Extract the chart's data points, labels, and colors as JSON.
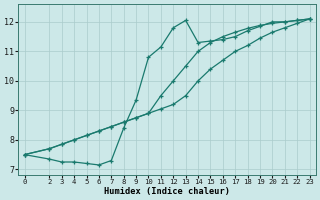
{
  "xlabel": "Humidex (Indice chaleur)",
  "bg_color": "#cce8e8",
  "grid_color": "#aacccc",
  "line_color": "#1a7a6e",
  "xlim": [
    -0.5,
    23.5
  ],
  "ylim": [
    6.8,
    12.6
  ],
  "xticks": [
    0,
    2,
    3,
    4,
    5,
    6,
    7,
    8,
    9,
    10,
    11,
    12,
    13,
    14,
    15,
    16,
    17,
    18,
    19,
    20,
    21,
    22,
    23
  ],
  "yticks": [
    7,
    8,
    9,
    10,
    11,
    12
  ],
  "line1_diag": {
    "x": [
      0,
      2,
      3,
      4,
      5,
      6,
      7,
      8,
      9,
      10,
      11,
      12,
      13,
      14,
      15,
      16,
      17,
      18,
      19,
      20,
      21,
      22,
      23
    ],
    "y": [
      7.5,
      7.7,
      7.85,
      8.0,
      8.15,
      8.3,
      8.45,
      8.6,
      8.75,
      8.9,
      9.05,
      9.2,
      9.5,
      10.0,
      10.4,
      10.7,
      11.0,
      11.2,
      11.45,
      11.65,
      11.8,
      11.95,
      12.1
    ]
  },
  "line2_diag2": {
    "x": [
      0,
      2,
      3,
      4,
      5,
      6,
      7,
      8,
      9,
      10,
      11,
      12,
      13,
      14,
      15,
      16,
      17,
      18,
      19,
      20,
      21,
      22,
      23
    ],
    "y": [
      7.5,
      7.7,
      7.85,
      8.0,
      8.15,
      8.3,
      8.45,
      8.6,
      8.75,
      8.9,
      9.5,
      10.0,
      10.5,
      11.0,
      11.3,
      11.5,
      11.65,
      11.78,
      11.88,
      11.95,
      12.0,
      12.05,
      12.1
    ]
  },
  "line3_zigzag": {
    "x": [
      0,
      2,
      3,
      4,
      5,
      6,
      7,
      8,
      9,
      10,
      11,
      12,
      13,
      14,
      15,
      16,
      17,
      18,
      19,
      20,
      21,
      22,
      23
    ],
    "y": [
      7.5,
      7.35,
      7.25,
      7.25,
      7.2,
      7.15,
      7.3,
      8.4,
      9.35,
      10.8,
      11.15,
      11.8,
      12.05,
      11.3,
      11.35,
      11.4,
      11.5,
      11.7,
      11.85,
      12.0,
      12.0,
      12.05,
      12.1
    ]
  }
}
